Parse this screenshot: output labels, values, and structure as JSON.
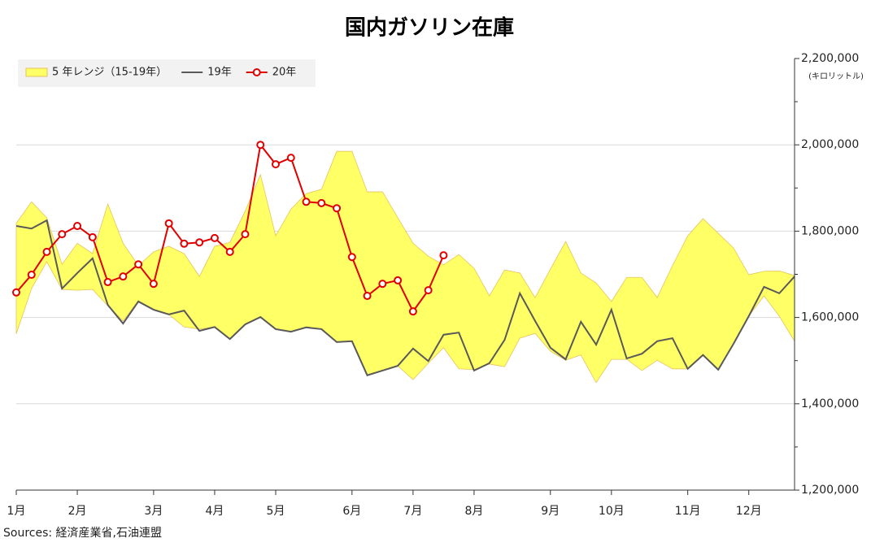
{
  "chart_data": {
    "type": "line",
    "title": "国内ガソリン在庫",
    "y_unit_label": "(キロリットル)",
    "source": "Sources: 経済産業省,石油連盟",
    "categories": [
      "1月",
      null,
      null,
      null,
      "2月",
      null,
      null,
      null,
      null,
      "3月",
      null,
      null,
      null,
      "4月",
      null,
      null,
      null,
      "5月",
      null,
      null,
      null,
      null,
      "6月",
      null,
      null,
      null,
      "7月",
      null,
      null,
      null,
      "8月",
      null,
      null,
      null,
      null,
      "9月",
      null,
      null,
      null,
      "10月",
      null,
      null,
      null,
      null,
      "11月",
      null,
      null,
      null,
      "12月",
      null,
      null,
      null
    ],
    "ylim": [
      1200000,
      2200000
    ],
    "yticks": [
      {
        "value": 1200000,
        "label": "1,200,000"
      },
      {
        "value": 1400000,
        "label": "1,400,000"
      },
      {
        "value": 1600000,
        "label": "1,600,000"
      },
      {
        "value": 1800000,
        "label": "1,800,000"
      },
      {
        "value": 2000000,
        "label": "2,000,000"
      },
      {
        "value": 2200000,
        "label": "2,200,000"
      }
    ],
    "yminorticks": [
      1300000,
      1500000,
      1700000,
      1900000,
      2100000
    ],
    "grid": true,
    "legend": "top-left",
    "series": [
      {
        "name": "5 年レンジ（15-19年）",
        "kind": "range",
        "color": "#ffff66",
        "edge_color": "#e6c35c",
        "high": [
          1818000,
          1868000,
          1831000,
          1723000,
          1772000,
          1748000,
          1863000,
          1772000,
          1720000,
          1752000,
          1765000,
          1748000,
          1695000,
          1765000,
          1774000,
          1846000,
          1931000,
          1789000,
          1851000,
          1887000,
          1897000,
          1985000,
          1985000,
          1891000,
          1891000,
          1831000,
          1772000,
          1742000,
          1722000,
          1746000,
          1714000,
          1650000,
          1710000,
          1703000,
          1646000,
          1712000,
          1776000,
          1703000,
          1680000,
          1637000,
          1693000,
          1693000,
          1646000,
          1720000,
          1789000,
          1829000,
          1795000,
          1761000,
          1699000,
          1707000,
          1708000,
          1697000
        ],
        "low": [
          1562000,
          1667000,
          1729000,
          1665000,
          1663000,
          1665000,
          1627000,
          1592000,
          1639000,
          1618000,
          1607000,
          1578000,
          1573000,
          1578000,
          1550000,
          1584000,
          1601000,
          1573000,
          1567000,
          1577000,
          1573000,
          1543000,
          1545000,
          1466000,
          1477000,
          1488000,
          1456000,
          1494000,
          1530000,
          1481000,
          1479000,
          1492000,
          1486000,
          1552000,
          1563000,
          1522000,
          1501000,
          1513000,
          1449000,
          1503000,
          1503000,
          1477000,
          1501000,
          1481000,
          1481000,
          1513000,
          1479000,
          1539000,
          1603000,
          1650000,
          1603000,
          1545000
        ]
      },
      {
        "name": "19年",
        "color": "#595959",
        "markers": false,
        "values": [
          1812000,
          1806000,
          1825000,
          1667000,
          1703000,
          1737000,
          1629000,
          1586000,
          1637000,
          1618000,
          1607000,
          1616000,
          1569000,
          1578000,
          1550000,
          1584000,
          1601000,
          1573000,
          1567000,
          1577000,
          1573000,
          1543000,
          1545000,
          1466000,
          1477000,
          1488000,
          1528000,
          1499000,
          1560000,
          1565000,
          1477000,
          1494000,
          1548000,
          1656000,
          1592000,
          1530000,
          1503000,
          1590000,
          1537000,
          1618000,
          1505000,
          1516000,
          1545000,
          1552000,
          1481000,
          1513000,
          1479000,
          1539000,
          1603000,
          1671000,
          1656000,
          1695000
        ]
      },
      {
        "name": "20年",
        "color": "#e00000",
        "markers": true,
        "values": [
          1658000,
          1699000,
          1752000,
          1793000,
          1812000,
          1786000,
          1682000,
          1695000,
          1723000,
          1678000,
          1818000,
          1771000,
          1774000,
          1784000,
          1752000,
          1793000,
          2000000,
          1955000,
          1970000,
          1868000,
          1865000,
          1853000,
          1740000,
          1650000,
          1678000,
          1686000,
          1614000,
          1663000,
          1744000,
          null,
          null,
          null,
          null,
          null,
          null,
          null,
          null,
          null,
          null,
          null,
          null,
          null,
          null,
          null,
          null,
          null,
          null,
          null,
          null,
          null,
          null,
          null
        ]
      }
    ]
  }
}
